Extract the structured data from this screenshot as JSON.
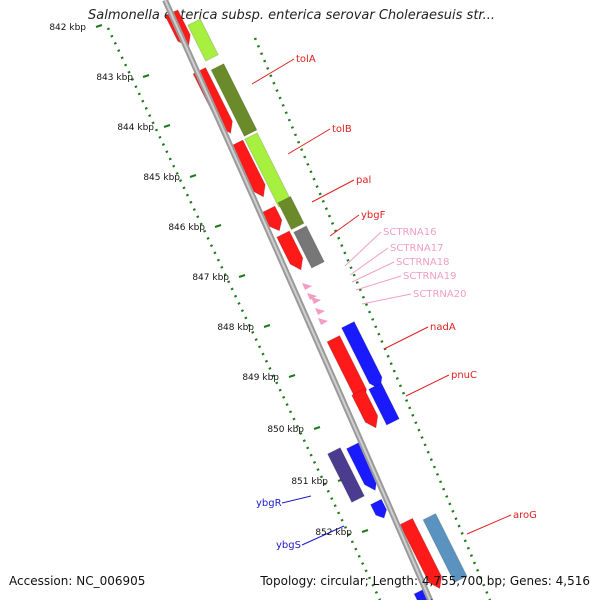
{
  "title": "Salmonella enterica subsp. enterica serovar Choleraesuis str...",
  "footer": {
    "accession": "Accession: NC_006905",
    "stats": "Topology: circular; Length: 4,755,700 bp; Genes: 4,516"
  },
  "colors": {
    "backbone": "#9a9a9a",
    "gene_red": "#ff1a1a",
    "gene_blue": "#1a1aff",
    "gene_lime": "#a8f040",
    "gene_olive": "#6b8a2a",
    "gene_gray": "#777777",
    "gene_navy": "#4b3c8f",
    "gene_steel": "#5b93c0",
    "rna_pink": "#f19ec2",
    "tick_green": "#1d7a1d",
    "label_blue": "#1a1acc"
  },
  "scale": {
    "ticks": [
      "842 kbp",
      "843 kbp",
      "844 kbp",
      "845 kbp",
      "846 kbp",
      "847 kbp",
      "848 kbp",
      "849 kbp",
      "850 kbp",
      "851 kbp",
      "852 kbp"
    ]
  },
  "gene_labels": [
    {
      "name": "tolA",
      "color": "red"
    },
    {
      "name": "tolB",
      "color": "red"
    },
    {
      "name": "pal",
      "color": "red"
    },
    {
      "name": "ybgF",
      "color": "red"
    },
    {
      "name": "SCTRNA16",
      "color": "pink"
    },
    {
      "name": "SCTRNA17",
      "color": "pink"
    },
    {
      "name": "SCTRNA18",
      "color": "pink"
    },
    {
      "name": "SCTRNA19",
      "color": "pink"
    },
    {
      "name": "SCTRNA20",
      "color": "pink"
    },
    {
      "name": "nadA",
      "color": "red"
    },
    {
      "name": "pnuC",
      "color": "red"
    },
    {
      "name": "aroG",
      "color": "red"
    },
    {
      "name": "ybgR",
      "color": "blue"
    },
    {
      "name": "ybgS",
      "color": "blue"
    }
  ]
}
